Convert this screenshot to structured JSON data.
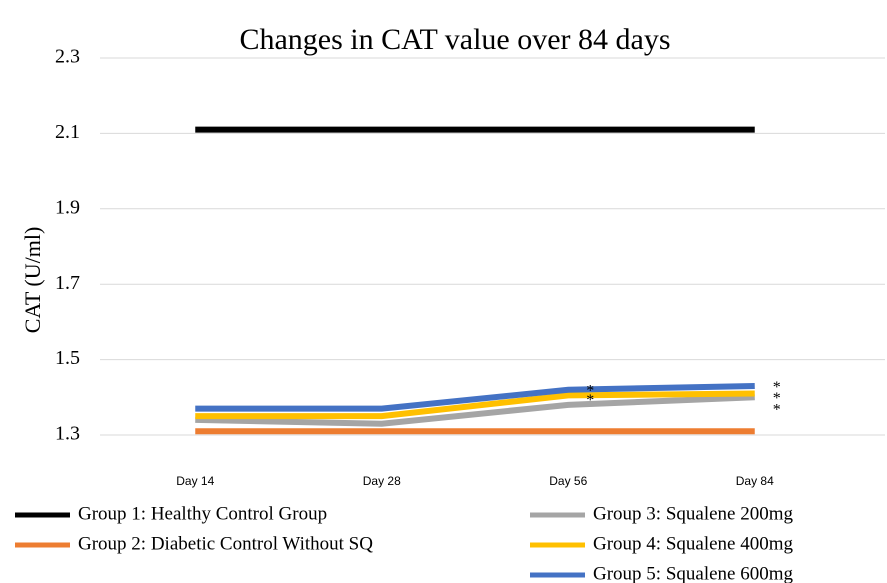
{
  "chart_data": {
    "type": "line",
    "title": "Changes in CAT value over 84 days",
    "y_label": "CAT (U/ml)",
    "categories": [
      "Day 14",
      "Day 28",
      "Day 56",
      "Day 84"
    ],
    "series": [
      {
        "name": "Group 1: Healthy Control Group",
        "color": "#000000",
        "values": [
          2.11,
          2.11,
          2.11,
          2.11
        ]
      },
      {
        "name": "Group 2: Diabetic Control Without SQ",
        "color": "#ed7d31",
        "values": [
          1.31,
          1.31,
          1.31,
          1.31
        ]
      },
      {
        "name": "Group 3: Squalene 200mg",
        "color": "#a5a5a5",
        "values": [
          1.34,
          1.33,
          1.38,
          1.4
        ]
      },
      {
        "name": "Group 4: Squalene 400mg",
        "color": "#ffc000",
        "values": [
          1.35,
          1.35,
          1.405,
          1.41
        ]
      },
      {
        "name": "Group 5: Squalene 600mg",
        "color": "#4472c4",
        "values": [
          1.37,
          1.37,
          1.42,
          1.43
        ]
      }
    ],
    "annotations": [
      {
        "text": "*",
        "x": "Day 56",
        "y": 1.425
      },
      {
        "text": "*",
        "x": "Day 56",
        "y": 1.4
      },
      {
        "text": "*",
        "x": "Day 84",
        "y": 1.435
      },
      {
        "text": "*",
        "x": "Day 84",
        "y": 1.405
      },
      {
        "text": "*",
        "x": "Day 84",
        "y": 1.375
      }
    ],
    "ylim": [
      1.3,
      2.3
    ],
    "yticks": [
      1.3,
      1.5,
      1.7,
      1.9,
      2.1,
      2.3
    ],
    "grid": true
  }
}
